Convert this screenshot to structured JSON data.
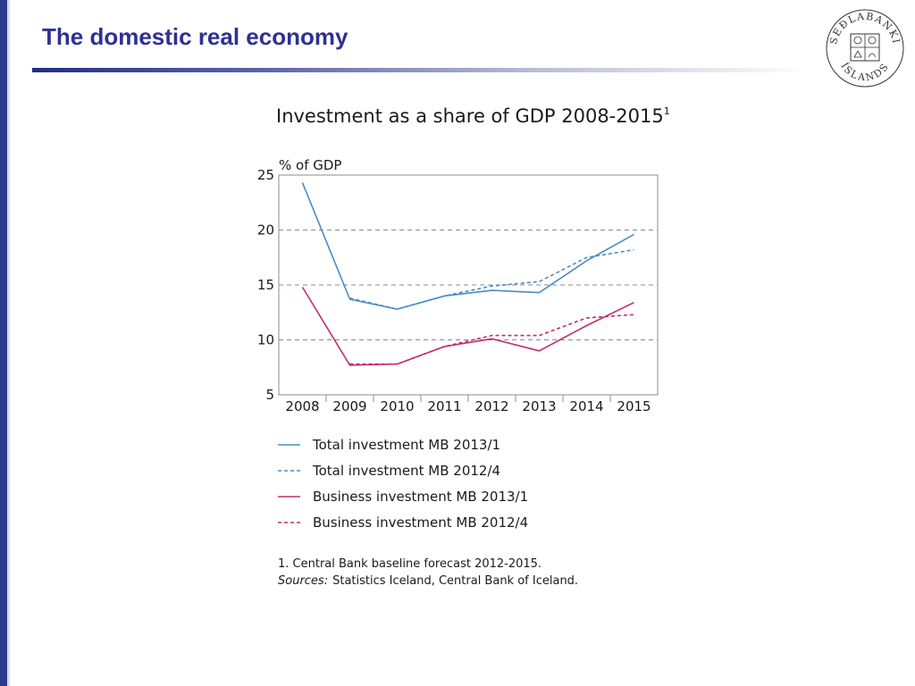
{
  "slide": {
    "title": "The domestic real economy",
    "colors": {
      "title": "#2e3192",
      "sidebar": "#2a3a8c"
    },
    "logo": {
      "icon": "sedlabanki-islands-seal-icon",
      "text_top": "SEÐLABANKI",
      "text_bottom": "ÍSLANDS"
    }
  },
  "chart_data": {
    "type": "line",
    "title": "Investment as a share of GDP 2008-2015",
    "title_superscript": "1",
    "ylabel": "% of GDP",
    "xlabel": "",
    "categories": [
      "2008",
      "2009",
      "2010",
      "2011",
      "2012",
      "2013",
      "2014",
      "2015"
    ],
    "ylim": [
      5,
      25
    ],
    "yticks": [
      "5",
      "10",
      "15",
      "20",
      "25"
    ],
    "grid": {
      "y_dashed": [
        10,
        15,
        20
      ]
    },
    "legend_position": "bottom",
    "series": [
      {
        "name": "Total investment MB 2013/1",
        "color": "#4a8cc4",
        "style": "solid",
        "values": [
          24.3,
          13.7,
          12.8,
          14.0,
          14.5,
          14.3,
          17.2,
          19.6
        ]
      },
      {
        "name": "Total investment MB 2012/4",
        "color": "#4a8cc4",
        "style": "dashed",
        "values": [
          null,
          13.8,
          12.8,
          14.0,
          14.9,
          15.3,
          17.5,
          18.2
        ]
      },
      {
        "name": "Business investment MB 2013/1",
        "color": "#c42d6c",
        "style": "solid",
        "values": [
          14.8,
          7.7,
          7.8,
          9.4,
          10.1,
          9.0,
          11.3,
          13.4
        ]
      },
      {
        "name": "Business investment MB 2012/4",
        "color": "#c42d6c",
        "style": "dashed",
        "values": [
          null,
          7.8,
          7.8,
          9.4,
          10.4,
          10.4,
          12.0,
          12.3
        ]
      }
    ],
    "footnote": "1. Central Bank baseline forecast 2012-2015.",
    "sources_label": "Sources:",
    "sources_text": "Statistics Iceland, Central Bank of Iceland."
  }
}
